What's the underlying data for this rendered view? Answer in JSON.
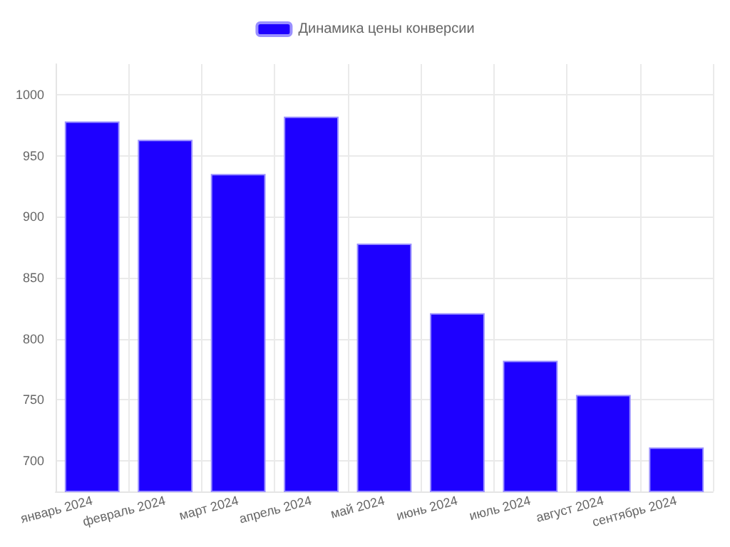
{
  "chart_data": {
    "type": "bar",
    "categories": [
      "январь 2024",
      "февраль 2024",
      "март 2024",
      "апрель 2024",
      "май 2024",
      "июнь 2024",
      "июль 2024",
      "август 2024",
      "сентябрь 2024"
    ],
    "series": [
      {
        "name": "Динамика цены конверсии",
        "color": "#1e00ff",
        "values": [
          978,
          963,
          935,
          982,
          878,
          821,
          782,
          754,
          711
        ]
      }
    ],
    "ylim": [
      675,
      1025
    ],
    "yticks": [
      700,
      750,
      800,
      850,
      900,
      950,
      1000
    ],
    "grid": true,
    "legend": "top"
  }
}
